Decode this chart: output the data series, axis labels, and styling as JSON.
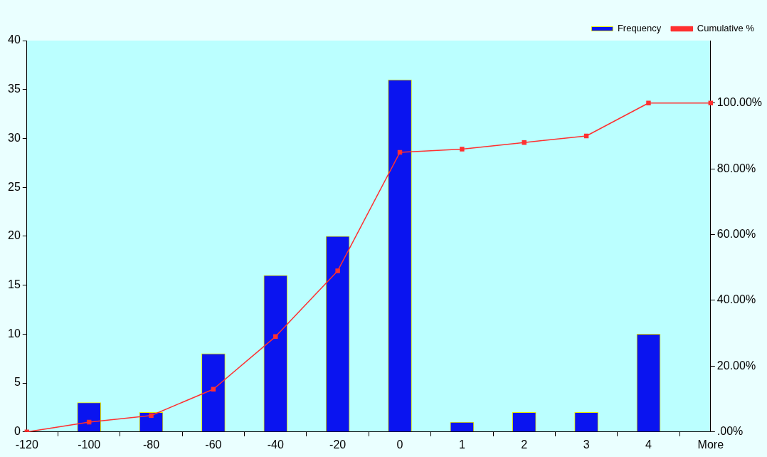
{
  "chart_data": {
    "type": "bar",
    "categories": [
      "-120",
      "-100",
      "-80",
      "-60",
      "-40",
      "-20",
      "0",
      "1",
      "2",
      "3",
      "4",
      "More"
    ],
    "series": [
      {
        "name": "Frequency",
        "color": "#0a14f0",
        "values": [
          0,
          3,
          2,
          8,
          16,
          20,
          36,
          1,
          2,
          2,
          10,
          0
        ]
      },
      {
        "name": "Cumulative %",
        "type": "line",
        "axis": "y2",
        "color": "#ff3030",
        "values": [
          0,
          3,
          5,
          13,
          29,
          49,
          85,
          86,
          88,
          90,
          100,
          100
        ]
      }
    ],
    "ylim": [
      0,
      40
    ],
    "yticks": [
      0,
      5,
      10,
      15,
      20,
      25,
      30,
      35,
      40
    ],
    "y2lim": [
      0,
      119
    ],
    "y2ticks": [
      {
        "value": 0,
        "label": ".00%"
      },
      {
        "value": 20,
        "label": "20.00%"
      },
      {
        "value": 40,
        "label": "40.00%"
      },
      {
        "value": 60,
        "label": "60.00%"
      },
      {
        "value": 80,
        "label": "80.00%"
      },
      {
        "value": 100,
        "label": "100.00%"
      }
    ],
    "grid": false,
    "legend": "top right",
    "marker": "square",
    "line_style": "solid"
  }
}
